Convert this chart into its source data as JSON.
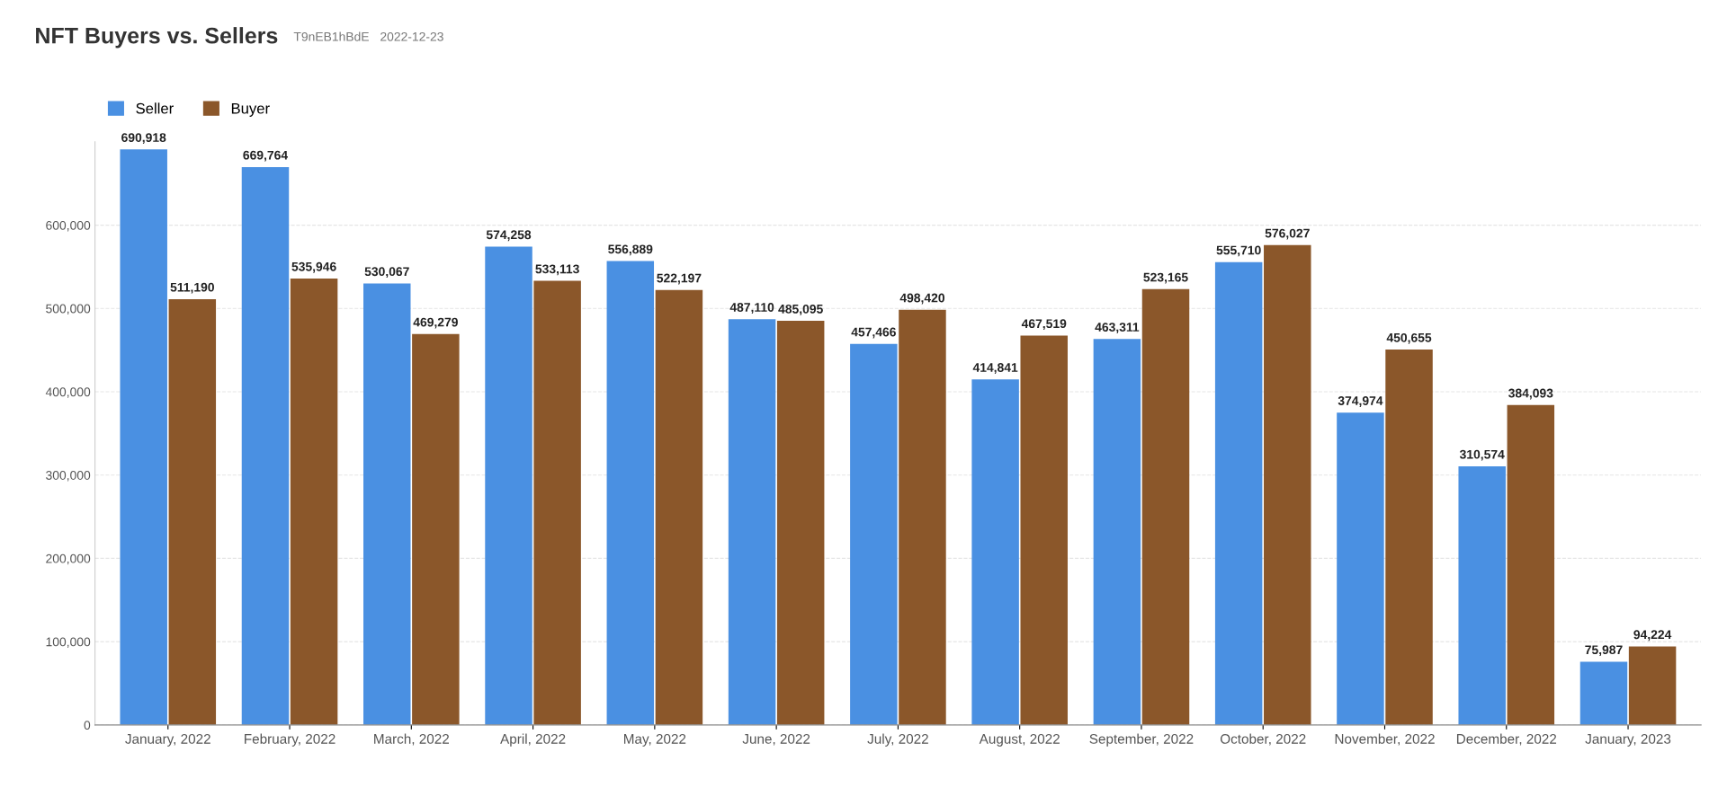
{
  "chart_data": {
    "type": "bar",
    "title": "NFT Buyers vs. Sellers",
    "annotations": [
      "T9nEB1hBdE",
      "2022-12-23"
    ],
    "categories": [
      "January, 2022",
      "February, 2022",
      "March, 2022",
      "April, 2022",
      "May, 2022",
      "June, 2022",
      "July, 2022",
      "August, 2022",
      "September, 2022",
      "October, 2022",
      "November, 2022",
      "December, 2022",
      "January, 2023"
    ],
    "series": [
      {
        "name": "Seller",
        "color": "#4a90e2",
        "values": [
          690918,
          669764,
          530067,
          574258,
          556889,
          487110,
          457466,
          414841,
          463311,
          555710,
          374974,
          310574,
          75987
        ],
        "value_labels": [
          "690,918",
          "669,764",
          "530,067",
          "574,258",
          "556,889",
          "487,110",
          "457,466",
          "414,841",
          "463,311",
          "555,710",
          "374,974",
          "310,574",
          "75,987"
        ]
      },
      {
        "name": "Buyer",
        "color": "#8b572a",
        "values": [
          511190,
          535946,
          469279,
          533113,
          522197,
          485095,
          498420,
          467519,
          523165,
          576027,
          450655,
          384093,
          94224
        ],
        "value_labels": [
          "511,190",
          "535,946",
          "469,279",
          "533,113",
          "522,197",
          "485,095",
          "498,420",
          "467,519",
          "523,165",
          "576,027",
          "450,655",
          "384,093",
          "94,224"
        ]
      }
    ],
    "ylim": [
      0,
      700000
    ],
    "yticks": [
      {
        "value": 0,
        "label": "0"
      },
      {
        "value": 100000,
        "label": "100,000"
      },
      {
        "value": 200000,
        "label": "200,000"
      },
      {
        "value": 300000,
        "label": "300,000"
      },
      {
        "value": 400000,
        "label": "400,000"
      },
      {
        "value": 500000,
        "label": "500,000"
      },
      {
        "value": 600000,
        "label": "600,000"
      }
    ],
    "grid": "y",
    "legend": "top left"
  }
}
